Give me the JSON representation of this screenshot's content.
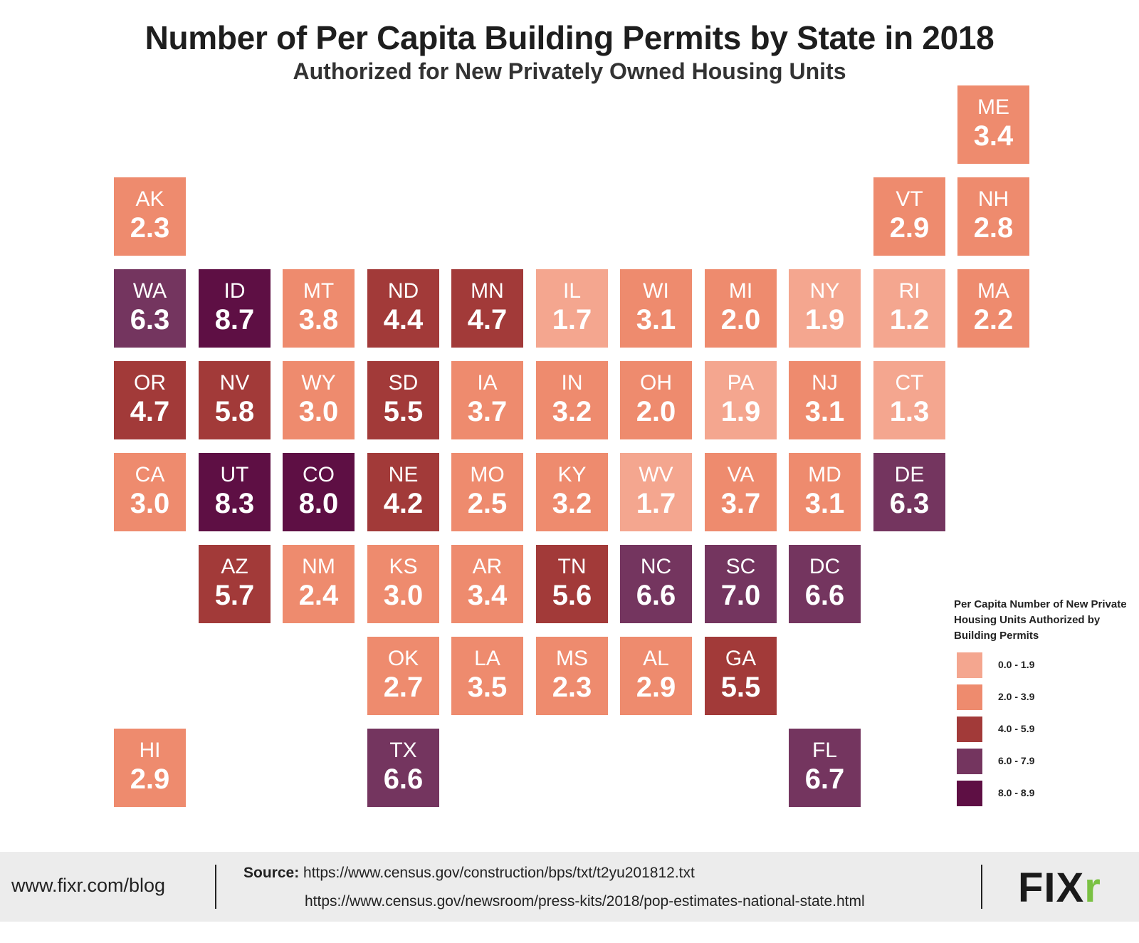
{
  "title": "Number of Per Capita Building Permits by State in 2018",
  "subtitle": "Authorized for New Privately Owned Housing Units",
  "colors": {
    "c1": "#f4a68f",
    "c2": "#ee8b6e",
    "c3": "#a23a39",
    "c4": "#74355f",
    "c5": "#5e0f44"
  },
  "states": [
    {
      "abbr": "ME",
      "value": "3.4",
      "color": "c2",
      "row": 0,
      "col": 10
    },
    {
      "abbr": "AK",
      "value": "2.3",
      "color": "c2",
      "row": 1,
      "col": 0
    },
    {
      "abbr": "VT",
      "value": "2.9",
      "color": "c2",
      "row": 1,
      "col": 9
    },
    {
      "abbr": "NH",
      "value": "2.8",
      "color": "c2",
      "row": 1,
      "col": 10
    },
    {
      "abbr": "WA",
      "value": "6.3",
      "color": "c4",
      "row": 2,
      "col": 0
    },
    {
      "abbr": "ID",
      "value": "8.7",
      "color": "c5",
      "row": 2,
      "col": 1
    },
    {
      "abbr": "MT",
      "value": "3.8",
      "color": "c2",
      "row": 2,
      "col": 2
    },
    {
      "abbr": "ND",
      "value": "4.4",
      "color": "c3",
      "row": 2,
      "col": 3
    },
    {
      "abbr": "MN",
      "value": "4.7",
      "color": "c3",
      "row": 2,
      "col": 4
    },
    {
      "abbr": "IL",
      "value": "1.7",
      "color": "c1",
      "row": 2,
      "col": 5
    },
    {
      "abbr": "WI",
      "value": "3.1",
      "color": "c2",
      "row": 2,
      "col": 6
    },
    {
      "abbr": "MI",
      "value": "2.0",
      "color": "c2",
      "row": 2,
      "col": 7
    },
    {
      "abbr": "NY",
      "value": "1.9",
      "color": "c1",
      "row": 2,
      "col": 8
    },
    {
      "abbr": "RI",
      "value": "1.2",
      "color": "c1",
      "row": 2,
      "col": 9
    },
    {
      "abbr": "MA",
      "value": "2.2",
      "color": "c2",
      "row": 2,
      "col": 10
    },
    {
      "abbr": "OR",
      "value": "4.7",
      "color": "c3",
      "row": 3,
      "col": 0
    },
    {
      "abbr": "NV",
      "value": "5.8",
      "color": "c3",
      "row": 3,
      "col": 1
    },
    {
      "abbr": "WY",
      "value": "3.0",
      "color": "c2",
      "row": 3,
      "col": 2
    },
    {
      "abbr": "SD",
      "value": "5.5",
      "color": "c3",
      "row": 3,
      "col": 3
    },
    {
      "abbr": "IA",
      "value": "3.7",
      "color": "c2",
      "row": 3,
      "col": 4
    },
    {
      "abbr": "IN",
      "value": "3.2",
      "color": "c2",
      "row": 3,
      "col": 5
    },
    {
      "abbr": "OH",
      "value": "2.0",
      "color": "c2",
      "row": 3,
      "col": 6
    },
    {
      "abbr": "PA",
      "value": "1.9",
      "color": "c1",
      "row": 3,
      "col": 7
    },
    {
      "abbr": "NJ",
      "value": "3.1",
      "color": "c2",
      "row": 3,
      "col": 8
    },
    {
      "abbr": "CT",
      "value": "1.3",
      "color": "c1",
      "row": 3,
      "col": 9
    },
    {
      "abbr": "CA",
      "value": "3.0",
      "color": "c2",
      "row": 4,
      "col": 0
    },
    {
      "abbr": "UT",
      "value": "8.3",
      "color": "c5",
      "row": 4,
      "col": 1
    },
    {
      "abbr": "CO",
      "value": "8.0",
      "color": "c5",
      "row": 4,
      "col": 2
    },
    {
      "abbr": "NE",
      "value": "4.2",
      "color": "c3",
      "row": 4,
      "col": 3
    },
    {
      "abbr": "MO",
      "value": "2.5",
      "color": "c2",
      "row": 4,
      "col": 4
    },
    {
      "abbr": "KY",
      "value": "3.2",
      "color": "c2",
      "row": 4,
      "col": 5
    },
    {
      "abbr": "WV",
      "value": "1.7",
      "color": "c1",
      "row": 4,
      "col": 6
    },
    {
      "abbr": "VA",
      "value": "3.7",
      "color": "c2",
      "row": 4,
      "col": 7
    },
    {
      "abbr": "MD",
      "value": "3.1",
      "color": "c2",
      "row": 4,
      "col": 8
    },
    {
      "abbr": "DE",
      "value": "6.3",
      "color": "c4",
      "row": 4,
      "col": 9
    },
    {
      "abbr": "AZ",
      "value": "5.7",
      "color": "c3",
      "row": 5,
      "col": 1
    },
    {
      "abbr": "NM",
      "value": "2.4",
      "color": "c2",
      "row": 5,
      "col": 2
    },
    {
      "abbr": "KS",
      "value": "3.0",
      "color": "c2",
      "row": 5,
      "col": 3
    },
    {
      "abbr": "AR",
      "value": "3.4",
      "color": "c2",
      "row": 5,
      "col": 4
    },
    {
      "abbr": "TN",
      "value": "5.6",
      "color": "c3",
      "row": 5,
      "col": 5
    },
    {
      "abbr": "NC",
      "value": "6.6",
      "color": "c4",
      "row": 5,
      "col": 6
    },
    {
      "abbr": "SC",
      "value": "7.0",
      "color": "c4",
      "row": 5,
      "col": 7
    },
    {
      "abbr": "DC",
      "value": "6.6",
      "color": "c4",
      "row": 5,
      "col": 8
    },
    {
      "abbr": "OK",
      "value": "2.7",
      "color": "c2",
      "row": 6,
      "col": 3
    },
    {
      "abbr": "LA",
      "value": "3.5",
      "color": "c2",
      "row": 6,
      "col": 4
    },
    {
      "abbr": "MS",
      "value": "2.3",
      "color": "c2",
      "row": 6,
      "col": 5
    },
    {
      "abbr": "AL",
      "value": "2.9",
      "color": "c2",
      "row": 6,
      "col": 6
    },
    {
      "abbr": "GA",
      "value": "5.5",
      "color": "c3",
      "row": 6,
      "col": 7
    },
    {
      "abbr": "HI",
      "value": "2.9",
      "color": "c2",
      "row": 7,
      "col": 0
    },
    {
      "abbr": "TX",
      "value": "6.6",
      "color": "c4",
      "row": 7,
      "col": 3
    },
    {
      "abbr": "FL",
      "value": "6.7",
      "color": "c4",
      "row": 7,
      "col": 8
    }
  ],
  "legend": {
    "title": "Per Capita Number of New Private Housing Units Authorized by Building Permits",
    "items": [
      {
        "label": "0.0 - 1.9",
        "color": "c1"
      },
      {
        "label": "2.0 - 3.9",
        "color": "c2"
      },
      {
        "label": "4.0 - 5.9",
        "color": "c3"
      },
      {
        "label": "6.0 - 7.9",
        "color": "c4"
      },
      {
        "label": "8.0 - 8.9",
        "color": "c5"
      }
    ]
  },
  "footer": {
    "site": "www.fixr.com/blog",
    "source_label": "Source:",
    "source_url1": "https://www.census.gov/construction/bps/txt/t2yu201812.txt",
    "source_url2": "https://www.census.gov/newsroom/press-kits/2018/pop-estimates-national-state.html",
    "logo_main": "FIX",
    "logo_accent": "r"
  }
}
